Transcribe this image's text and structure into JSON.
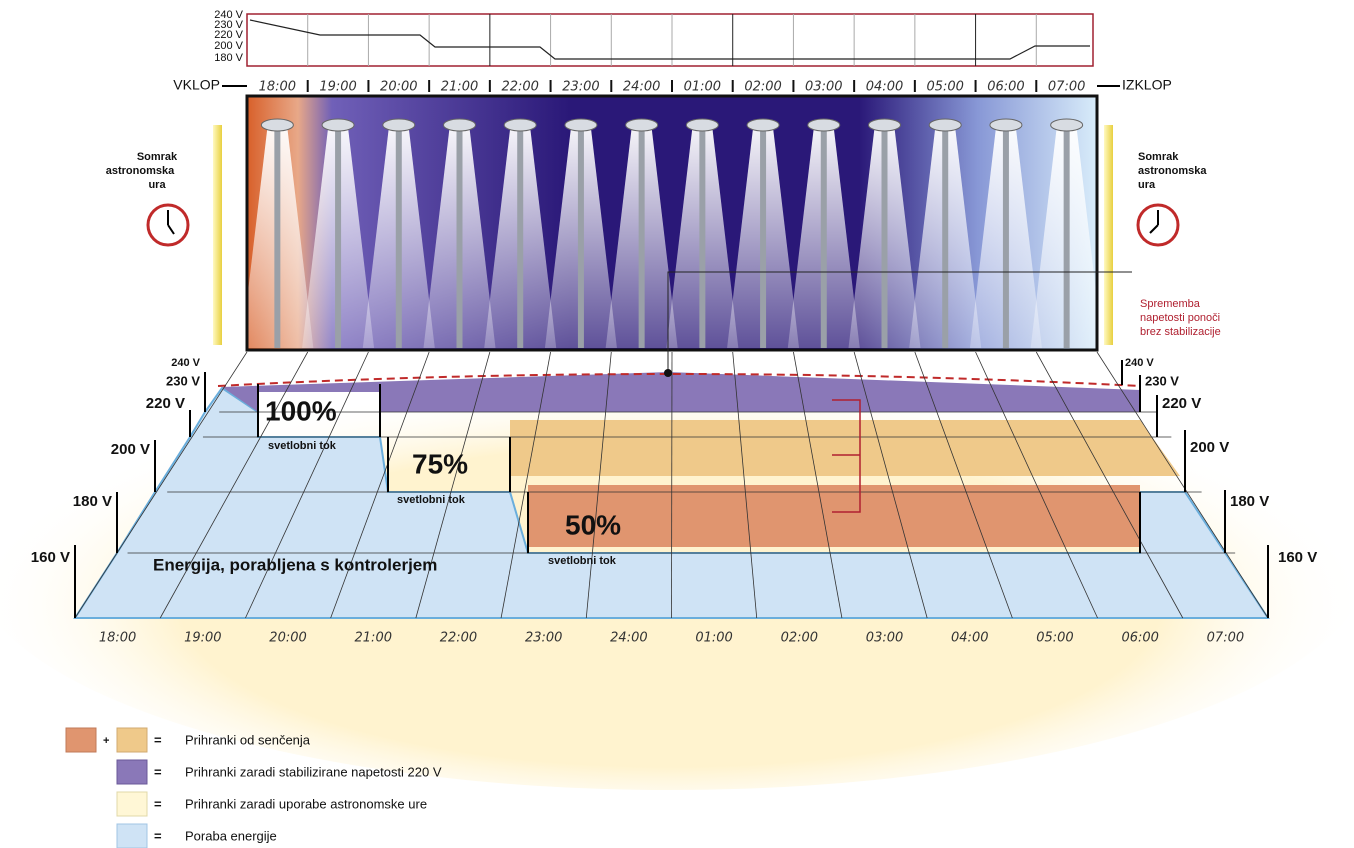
{
  "top_scale": [
    "240 V",
    "230 V",
    "220 V",
    "200 V",
    "180 V"
  ],
  "hours": [
    "18:00",
    "19:00",
    "20:00",
    "21:00",
    "22:00",
    "23:00",
    "24:00",
    "01:00",
    "02:00",
    "03:00",
    "04:00",
    "05:00",
    "06:00",
    "07:00"
  ],
  "switch_on": "VKLOP",
  "switch_off": "IZKLOP",
  "dusk": [
    "Somrak",
    "astronomska",
    "ura"
  ],
  "note": [
    "Sprememba",
    "napetosti ponoči",
    "brez stabilizacije"
  ],
  "voltages": [
    "240 V",
    "230 V",
    "220 V",
    "200 V",
    "180 V",
    "160 V"
  ],
  "levels": [
    {
      "percent": "100%",
      "caption": "svetlobni tok"
    },
    {
      "percent": "75%",
      "caption": "svetlobni tok"
    },
    {
      "percent": "50%",
      "caption": "svetlobni tok"
    }
  ],
  "energy_label": "Energija, porabljena s kontrolerjem",
  "legend": {
    "plus": "+",
    "equals": "=",
    "items": [
      "Prihranki od senčenja",
      "Prihranki zaradi stabilizirane napetosti 220 V",
      "Prihranki zaradi uporabe astronomske ure",
      "Poraba energije"
    ]
  }
}
